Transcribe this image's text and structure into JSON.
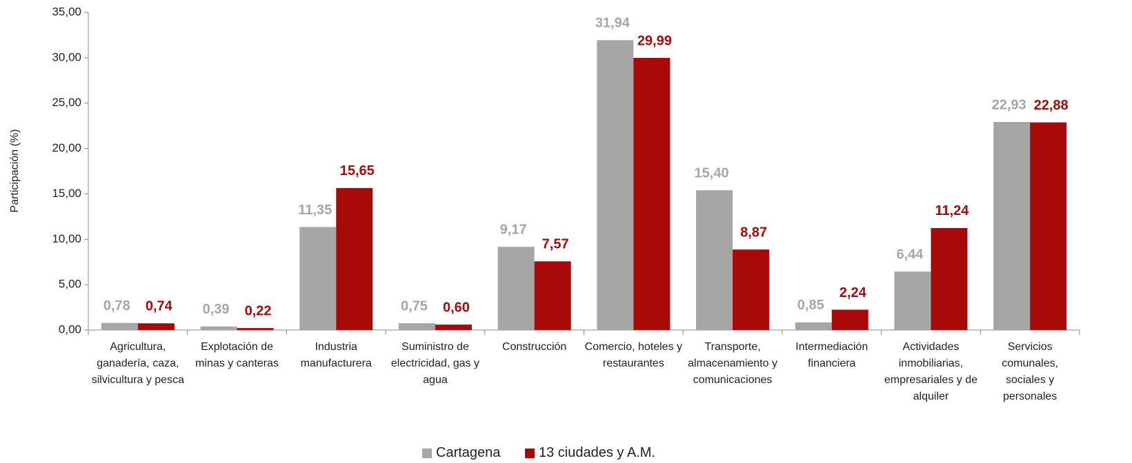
{
  "chart_data": {
    "type": "bar",
    "y_label": "Participación (%)",
    "categories": [
      "Agricultura, ganadería, caza, silvicultura y pesca",
      "Explotación de minas y canteras",
      "Industria manufacturera",
      "Suministro de electricidad, gas y agua",
      "Construcción",
      "Comercio, hoteles y restaurantes",
      "Transporte, almacenamiento y comunicaciones",
      "Intermediación financiera",
      "Actividades inmobiliarias, empresariales y de alquiler",
      "Servicios comunales, sociales y personales"
    ],
    "series": [
      {
        "name": "Cartagena",
        "color": "#a6a6a6",
        "values": [
          0.78,
          0.39,
          11.35,
          0.75,
          9.17,
          31.94,
          15.4,
          0.85,
          6.44,
          22.93
        ],
        "value_labels": [
          "0,78",
          "0,39",
          "11,35",
          "0,75",
          "9,17",
          "31,94",
          "15,40",
          "0,85",
          "6,44",
          "22,93"
        ]
      },
      {
        "name": "13 ciudades y A.M.",
        "color": "#a80a0a",
        "values": [
          0.74,
          0.22,
          15.65,
          0.6,
          7.57,
          29.99,
          8.87,
          2.24,
          11.24,
          22.88
        ],
        "value_labels": [
          "0,74",
          "0,22",
          "15,65",
          "0,60",
          "7,57",
          "29,99",
          "8,87",
          "2,24",
          "11,24",
          "22,88"
        ]
      }
    ],
    "ylim": [
      0,
      35
    ],
    "yticks": [
      {
        "value": 0,
        "label": "0,00"
      },
      {
        "value": 5,
        "label": "5,00"
      },
      {
        "value": 10,
        "label": "10,00"
      },
      {
        "value": 15,
        "label": "15,00"
      },
      {
        "value": 20,
        "label": "20,00"
      },
      {
        "value": 25,
        "label": "25,00"
      },
      {
        "value": 30,
        "label": "30,00"
      },
      {
        "value": 35,
        "label": "35,00"
      }
    ],
    "grid": false,
    "legend": "bottom"
  }
}
